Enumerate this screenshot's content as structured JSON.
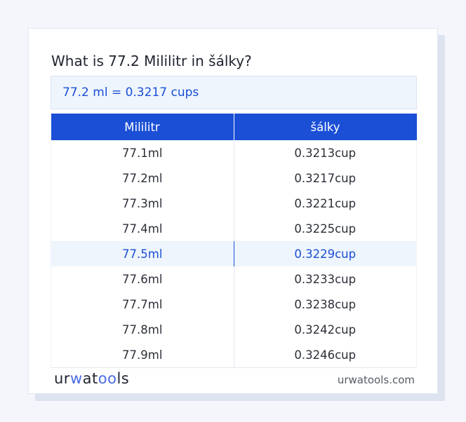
{
  "title": "What is 77.2 Mililitr in šálky?",
  "result": "77.2 ml = 0.3217 cups",
  "table": {
    "headers": [
      "Mililitr",
      "šálky"
    ],
    "rows": [
      [
        "77.1ml",
        "0.3213cup"
      ],
      [
        "77.2ml",
        "0.3217cup"
      ],
      [
        "77.3ml",
        "0.3221cup"
      ],
      [
        "77.4ml",
        "0.3225cup"
      ],
      [
        "77.5ml",
        "0.3229cup"
      ],
      [
        "77.6ml",
        "0.3233cup"
      ],
      [
        "77.7ml",
        "0.3238cup"
      ],
      [
        "77.8ml",
        "0.3242cup"
      ],
      [
        "77.9ml",
        "0.3246cup"
      ]
    ],
    "highlighted_row": 4
  },
  "footer": {
    "logo": "urwatools",
    "site": "urwatools.com"
  },
  "colors": {
    "accent": "#1a4fd6",
    "highlight_bg": "#eef5fd"
  }
}
